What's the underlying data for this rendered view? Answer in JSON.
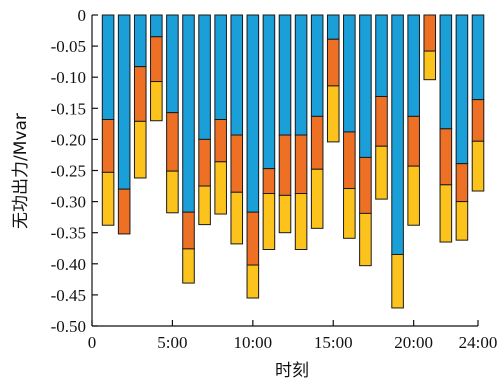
{
  "chart_data": {
    "type": "bar",
    "stacked": true,
    "xlabel": "时刻",
    "ylabel": "无功出力/Mvar",
    "xlim": [
      0,
      24
    ],
    "ylim": [
      -0.5,
      0
    ],
    "x_ticks": [
      {
        "value": 0,
        "label": "0"
      },
      {
        "value": 5,
        "label": "5:00"
      },
      {
        "value": 10,
        "label": "10:00"
      },
      {
        "value": 15,
        "label": "15:00"
      },
      {
        "value": 20,
        "label": "20:00"
      },
      {
        "value": 24,
        "label": "24:00"
      }
    ],
    "y_ticks": [
      {
        "value": 0,
        "label": "0"
      },
      {
        "value": -0.05,
        "label": "-0.05"
      },
      {
        "value": -0.1,
        "label": "-0.10"
      },
      {
        "value": -0.15,
        "label": "-0.15"
      },
      {
        "value": -0.2,
        "label": "-0.20"
      },
      {
        "value": -0.25,
        "label": "-0.25"
      },
      {
        "value": -0.3,
        "label": "-0.30"
      },
      {
        "value": -0.35,
        "label": "-0.35"
      },
      {
        "value": -0.4,
        "label": "-0.40"
      },
      {
        "value": -0.45,
        "label": "-0.45"
      },
      {
        "value": -0.5,
        "label": "-0.50"
      }
    ],
    "categories": [
      1,
      2,
      3,
      4,
      5,
      6,
      7,
      8,
      9,
      10,
      11,
      12,
      13,
      14,
      15,
      16,
      17,
      18,
      19,
      20,
      21,
      22,
      23,
      24
    ],
    "series": [
      {
        "color": "#1a9fd8",
        "values": [
          -0.168,
          -0.28,
          -0.083,
          -0.035,
          -0.157,
          -0.317,
          -0.2,
          -0.168,
          -0.193,
          -0.317,
          -0.247,
          -0.193,
          -0.193,
          -0.163,
          -0.039,
          -0.188,
          -0.229,
          -0.131,
          -0.385,
          -0.163,
          0.0,
          -0.183,
          -0.239,
          -0.136
        ]
      },
      {
        "color": "#ee7024",
        "values": [
          -0.085,
          -0.072,
          -0.088,
          -0.072,
          -0.094,
          -0.059,
          -0.075,
          -0.068,
          -0.092,
          -0.085,
          -0.04,
          -0.097,
          -0.094,
          -0.085,
          -0.075,
          -0.091,
          -0.09,
          -0.08,
          0.0,
          -0.08,
          -0.058,
          -0.09,
          -0.061,
          -0.067
        ]
      },
      {
        "color": "#fbc31c",
        "values": [
          -0.085,
          0.0,
          -0.091,
          -0.063,
          -0.067,
          -0.055,
          -0.062,
          -0.084,
          -0.083,
          -0.053,
          -0.09,
          -0.06,
          -0.09,
          -0.095,
          -0.09,
          -0.08,
          -0.084,
          -0.085,
          -0.086,
          -0.095,
          -0.046,
          -0.092,
          -0.062,
          -0.08
        ]
      }
    ]
  }
}
